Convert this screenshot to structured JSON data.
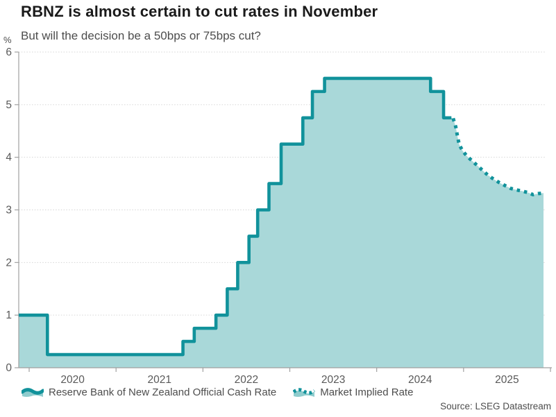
{
  "header": {
    "title": "RBNZ is almost certain to cut rates in November",
    "subtitle": "But will the decision be a 50bps or 75bps cut?",
    "unit_label": "%"
  },
  "legend": [
    {
      "label": "Reserve Bank of New Zealand Official Cash Rate",
      "style": "solid"
    },
    {
      "label": "Market Implied Rate",
      "style": "dotted"
    }
  ],
  "source": "Source: LSEG Datastream",
  "colors": {
    "line": "#11929b",
    "fill": "#a9d8d9",
    "grid": "#d5d5d5",
    "axis": "#a0a0a0",
    "tick_text": "#595959"
  },
  "chart_data": {
    "type": "area",
    "title": "RBNZ is almost certain to cut rates in November",
    "subtitle": "But will the decision be a 50bps or 75bps cut?",
    "xlabel": "",
    "ylabel": "%",
    "xlim": [
      2019.88,
      2026.0
    ],
    "ylim": [
      0,
      6
    ],
    "yticks": [
      0,
      1,
      2,
      3,
      4,
      5,
      6
    ],
    "xticks": [
      2020,
      2021,
      2022,
      2023,
      2024,
      2025,
      2026
    ],
    "xtick_labels": [
      {
        "pos": 2020.5,
        "text": "2020"
      },
      {
        "pos": 2021.5,
        "text": "2021"
      },
      {
        "pos": 2022.5,
        "text": "2022"
      },
      {
        "pos": 2023.5,
        "text": "2023"
      },
      {
        "pos": 2024.5,
        "text": "2024"
      },
      {
        "pos": 2025.5,
        "text": "2025"
      }
    ],
    "grid": "dotted-horizontal",
    "legend_position": "bottom",
    "series": [
      {
        "name": "Reserve Bank of New Zealand Official Cash Rate",
        "type": "step-line",
        "unit": "percent",
        "start": {
          "x": 2019.88,
          "y": 1.0
        },
        "changes": [
          {
            "x": 2020.21,
            "y": 0.25
          },
          {
            "x": 2021.77,
            "y": 0.5
          },
          {
            "x": 2021.9,
            "y": 0.75
          },
          {
            "x": 2022.15,
            "y": 1.0
          },
          {
            "x": 2022.28,
            "y": 1.5
          },
          {
            "x": 2022.4,
            "y": 2.0
          },
          {
            "x": 2022.53,
            "y": 2.5
          },
          {
            "x": 2022.63,
            "y": 3.0
          },
          {
            "x": 2022.76,
            "y": 3.5
          },
          {
            "x": 2022.9,
            "y": 4.25
          },
          {
            "x": 2023.15,
            "y": 4.75
          },
          {
            "x": 2023.26,
            "y": 5.25
          },
          {
            "x": 2023.4,
            "y": 5.5
          },
          {
            "x": 2024.62,
            "y": 5.25
          },
          {
            "x": 2024.77,
            "y": 4.75
          }
        ],
        "end_x": 2024.86
      },
      {
        "name": "Market Implied Rate",
        "type": "dotted-line",
        "unit": "percent",
        "points": [
          [
            2024.88,
            4.74
          ],
          [
            2024.91,
            4.58
          ],
          [
            2024.93,
            4.4
          ],
          [
            2024.95,
            4.24
          ],
          [
            2024.99,
            4.12
          ],
          [
            2025.04,
            4.02
          ],
          [
            2025.1,
            3.93
          ],
          [
            2025.16,
            3.84
          ],
          [
            2025.22,
            3.75
          ],
          [
            2025.28,
            3.66
          ],
          [
            2025.35,
            3.58
          ],
          [
            2025.41,
            3.52
          ],
          [
            2025.48,
            3.46
          ],
          [
            2025.54,
            3.41
          ],
          [
            2025.61,
            3.38
          ],
          [
            2025.67,
            3.36
          ],
          [
            2025.74,
            3.33
          ],
          [
            2025.8,
            3.29
          ],
          [
            2025.86,
            3.31
          ],
          [
            2025.92,
            3.32
          ]
        ]
      }
    ]
  }
}
